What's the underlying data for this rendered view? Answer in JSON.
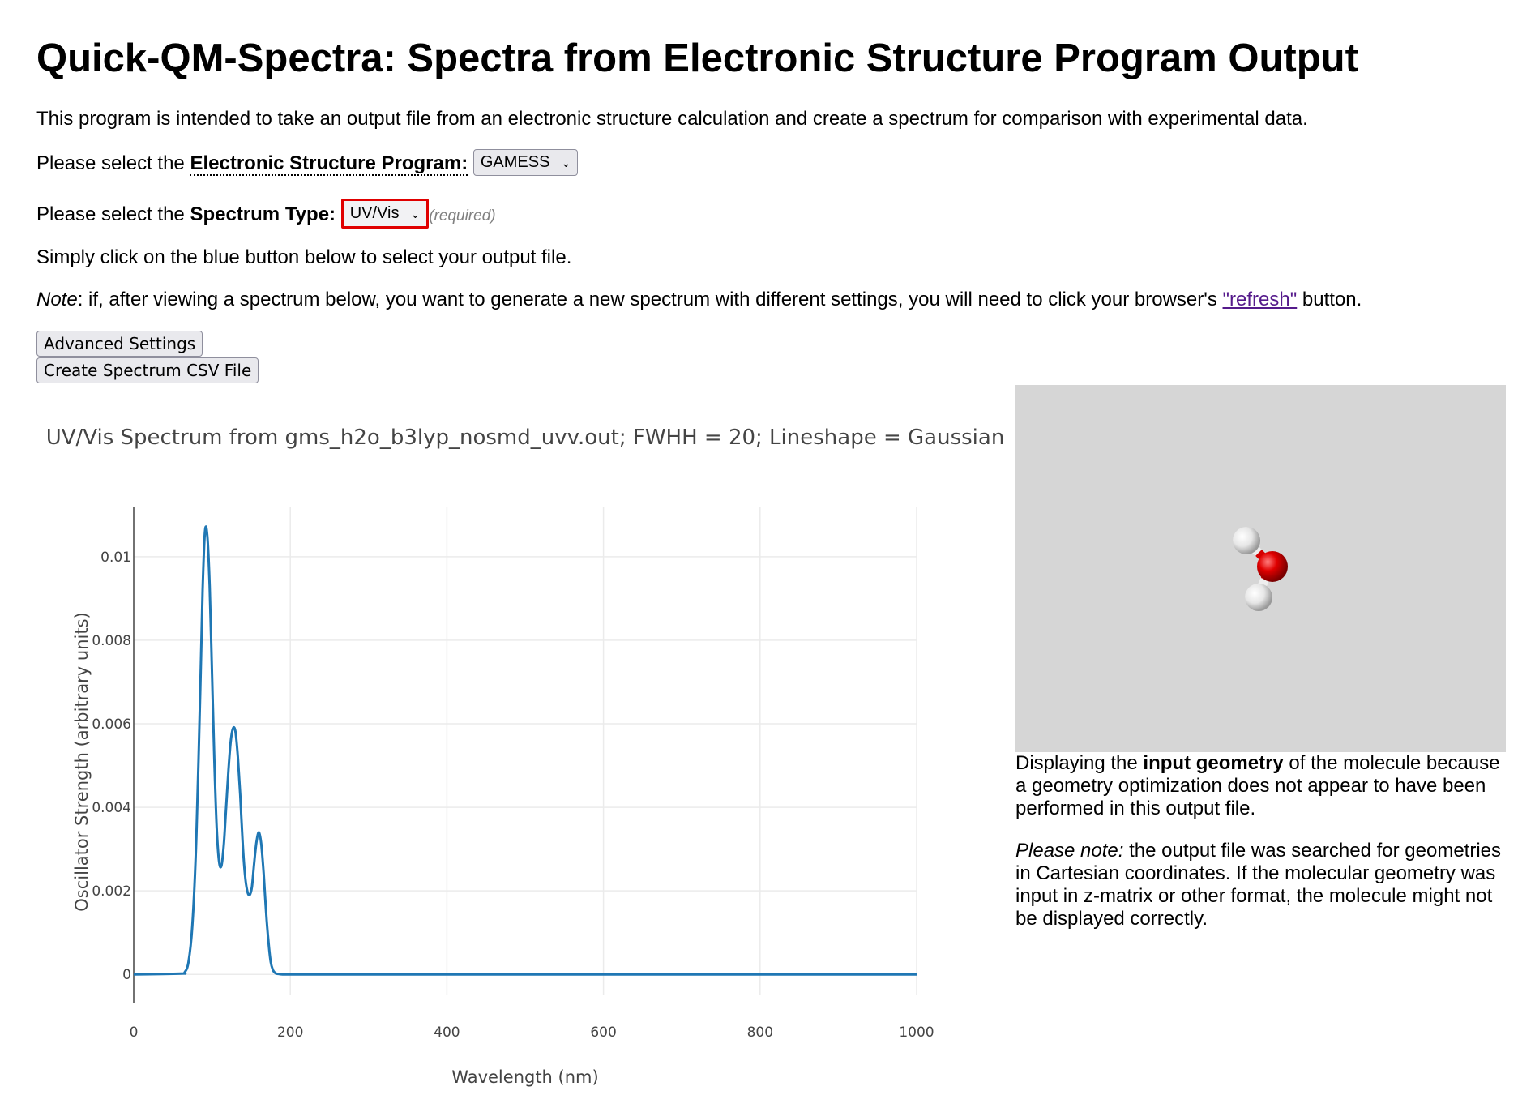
{
  "page": {
    "title": "Quick-QM-Spectra: Spectra from Electronic Structure Program Output",
    "intro": "This program is intended to take an output file from an electronic structure calculation and create a spectrum for comparison with experimental data.",
    "program_prefix": "Please select the ",
    "program_label": "Electronic Structure Program:",
    "program_value": "GAMESS",
    "spectrum_prefix": "Please select the ",
    "spectrum_label": "Spectrum Type:",
    "spectrum_value": "UV/Vis",
    "required_note": "(required)",
    "instruction": "Simply click on the blue button below to select your output file.",
    "note_label": "Note",
    "note_text": ": if, after viewing a spectrum below, you want to generate a new spectrum with different settings, you will need to click your browser's ",
    "note_link": "\"refresh\"",
    "note_end": " button.",
    "advanced_button": "Advanced Settings",
    "csv_button": "Create Spectrum CSV File"
  },
  "viewer": {
    "caption1_a": "Displaying the ",
    "caption1_b": "input geometry",
    "caption1_c": " of the molecule because a geometry optimization does not appear to have been performed in this output file.",
    "caption2_a": "Please note:",
    "caption2_b": " the output file was searched for geometries in Cartesian coordinates. If the molecular geometry was input in z-matrix or other format, the molecule might not be displayed correctly.",
    "colors": {
      "background": "#d6d6d6",
      "oxygen": "#e00000",
      "hydrogen": "#f2f2f2"
    }
  },
  "chart_data": {
    "type": "line",
    "title": "UV/Vis Spectrum from gms_h2o_b3lyp_nosmd_uvv.out; FWHH = 20; Lineshape = Gaussian",
    "xlabel": "Wavelength (nm)",
    "ylabel": "Oscillator Strength (arbitrary units)",
    "xlim": [
      0,
      1000
    ],
    "ylim": [
      -0.0005,
      0.0112
    ],
    "x_ticks": [
      0,
      200,
      400,
      600,
      800,
      1000
    ],
    "y_ticks": [
      0,
      0.002,
      0.004,
      0.006,
      0.008,
      0.01
    ],
    "x_tick_labels": [
      "0",
      "200",
      "400",
      "600",
      "800",
      "1000"
    ],
    "y_tick_labels": [
      "0",
      "0.002",
      "0.004",
      "0.006",
      "0.008",
      "0.01"
    ],
    "grid": true,
    "line_color": "#1f77b4",
    "series": [
      {
        "x": [
          0,
          60,
          65,
          70,
          75,
          80,
          85,
          88,
          91,
          94,
          97,
          100,
          103,
          106,
          109,
          112,
          115,
          118,
          121,
          124,
          127,
          130,
          133,
          136,
          139,
          142,
          145,
          148,
          151,
          154,
          157,
          160,
          163,
          166,
          169,
          172,
          175,
          178,
          181,
          185,
          190,
          200,
          300,
          400,
          500,
          600,
          700,
          800,
          900,
          1000
        ],
        "y": [
          0,
          2e-05,
          5e-05,
          0.0003,
          0.0012,
          0.0033,
          0.0068,
          0.0092,
          0.0106,
          0.0105,
          0.0093,
          0.0072,
          0.0051,
          0.0035,
          0.0027,
          0.0026,
          0.0031,
          0.004,
          0.0049,
          0.0056,
          0.0059,
          0.0058,
          0.0052,
          0.0043,
          0.0032,
          0.0024,
          0.002,
          0.0019,
          0.0021,
          0.0027,
          0.0032,
          0.0034,
          0.0031,
          0.0024,
          0.0015,
          0.0008,
          0.0003,
          0.0001,
          3e-05,
          1e-05,
          0,
          0,
          0,
          0,
          0,
          0,
          0,
          0,
          0,
          0
        ]
      }
    ]
  }
}
